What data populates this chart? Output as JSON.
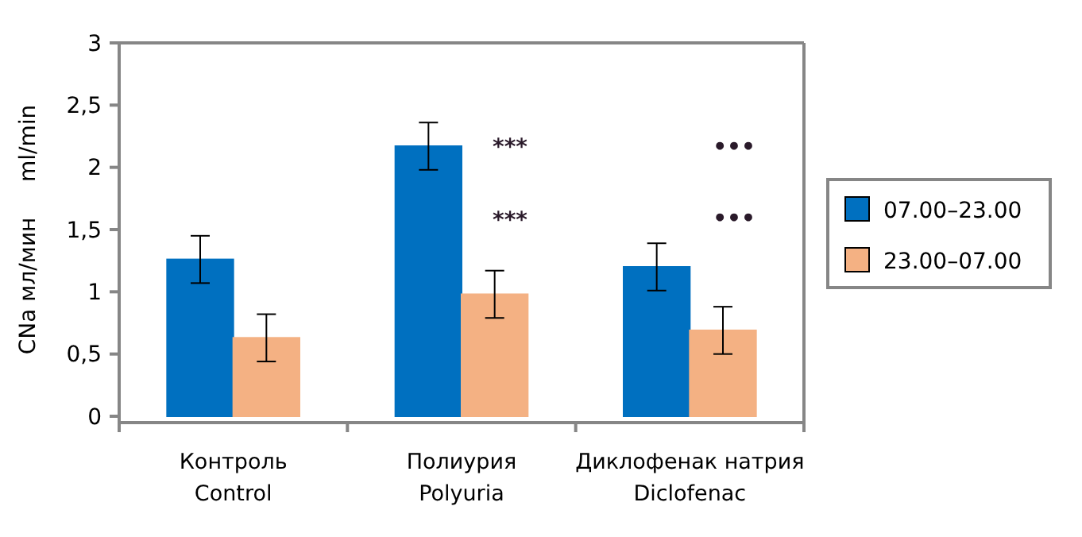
{
  "chart_data": {
    "type": "bar",
    "ylabel": "CNa мл/мин     ml/min",
    "categories": [
      "Контроль\nControl",
      "Полиурия\nPolyuria",
      "Диклофенак натрия\nDiclofenac"
    ],
    "series": [
      {
        "name": "07.00–23.00",
        "color": "#0070c0",
        "values": [
          1.26,
          2.17,
          1.2
        ],
        "errors": [
          0.19,
          0.19,
          0.19
        ]
      },
      {
        "name": "23.00–07.00",
        "color": "#f4b183",
        "values": [
          0.63,
          0.98,
          0.69
        ],
        "errors": [
          0.19,
          0.19,
          0.19
        ]
      }
    ],
    "ylim": [
      0,
      3
    ],
    "yticks": [
      0,
      {
        "value": 0.5,
        "label": "0,5"
      },
      1,
      {
        "value": 1.5,
        "label": "1,5"
      },
      2,
      {
        "value": 2.5,
        "label": "2,5"
      },
      3
    ],
    "annotations": [
      "***",
      "***",
      "•••",
      "•••"
    ],
    "grid": false,
    "legend": "right"
  }
}
